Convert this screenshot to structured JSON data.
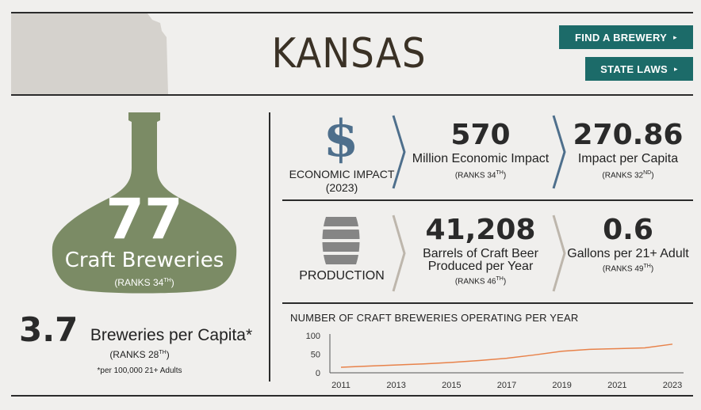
{
  "header": {
    "state_name": "KANSAS",
    "buttons": [
      {
        "label": "FIND A BREWERY",
        "arrow": "▸"
      },
      {
        "label": "STATE LAWS",
        "arrow": "▸"
      }
    ]
  },
  "breweries": {
    "count": "77",
    "label": "Craft Breweries",
    "rank_prefix": "(RANKS 34",
    "rank_suffix": "TH",
    "rank_close": ")",
    "per_capita_value": "3.7",
    "per_capita_label": "Breweries per Capita*",
    "per_capita_rank_prefix": "(RANKS 28",
    "per_capita_rank_suffix": "TH",
    "per_capita_rank_close": ")",
    "footnote": "*per 100,000 21+ Adults"
  },
  "economic": {
    "icon": "dollar-icon",
    "label_line1": "ECONOMIC IMPACT",
    "label_line2": "(2023)",
    "impact_value": "570",
    "impact_label": "Million Economic Impact",
    "impact_rank_prefix": "(RANKS 34",
    "impact_rank_suffix": "TH",
    "impact_rank_close": ")",
    "per_capita_value": "270.86",
    "per_capita_label": "Impact per Capita",
    "per_capita_rank_prefix": "(RANKS 32",
    "per_capita_rank_suffix": "ND",
    "per_capita_rank_close": ")"
  },
  "production": {
    "icon": "barrel-icon",
    "label": "PRODUCTION",
    "barrels_value": "41,208",
    "barrels_label_line1": "Barrels of Craft Beer",
    "barrels_label_line2": "Produced per Year",
    "barrels_rank_prefix": "(RANKS 46",
    "barrels_rank_suffix": "TH",
    "barrels_rank_close": ")",
    "gallons_value": "0.6",
    "gallons_label": "Gallons per 21+ Adult",
    "gallons_rank_prefix": "(RANKS 49",
    "gallons_rank_suffix": "TH",
    "gallons_rank_close": ")"
  },
  "colors": {
    "accent_teal": "#1c6b69",
    "bottle_green": "#7b8b65",
    "economic_chevron": "#4e6f8c",
    "production_chevron": "#bdb6ac",
    "line_orange": "#e8824a"
  },
  "chart_data": {
    "type": "line",
    "title": "NUMBER OF CRAFT BREWERIES OPERATING PER YEAR",
    "x": [
      2011,
      2012,
      2013,
      2014,
      2015,
      2016,
      2017,
      2018,
      2019,
      2020,
      2021,
      2022,
      2023
    ],
    "xticks": [
      "2011",
      "2013",
      "2015",
      "2017",
      "2019",
      "2021",
      "2023"
    ],
    "yticks": [
      "100",
      "50",
      "0"
    ],
    "series": [
      {
        "values": [
          15,
          18,
          21,
          24,
          28,
          33,
          39,
          48,
          58,
          63,
          65,
          67,
          77
        ]
      }
    ],
    "ylim": [
      0,
      100
    ],
    "grid": false
  }
}
